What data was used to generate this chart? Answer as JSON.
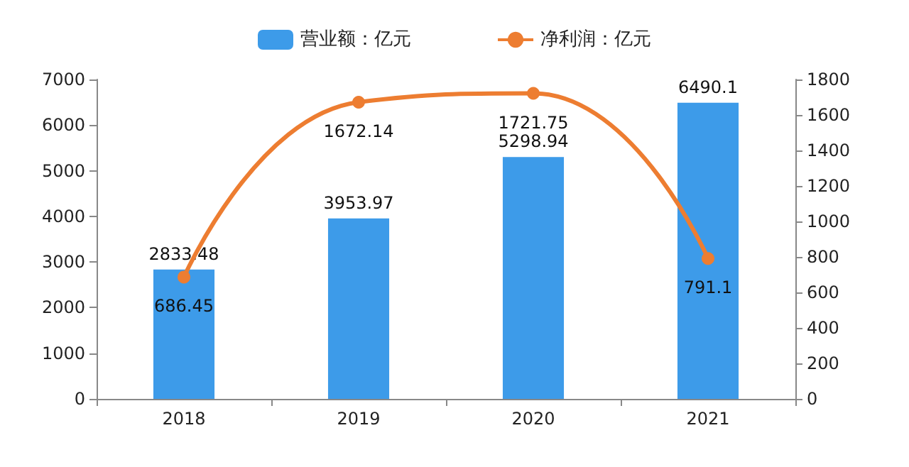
{
  "chart_data": {
    "type": "bar",
    "categories": [
      "2018",
      "2019",
      "2020",
      "2021"
    ],
    "series": [
      {
        "name": "营业额：亿元",
        "color": "#3d9be9",
        "values": [
          2833.48,
          3953.97,
          5298.94,
          6490.1
        ]
      },
      {
        "name": "净利润：亿元",
        "type": "line",
        "axis": "y2",
        "color": "#ed7d31",
        "values": [
          686.45,
          1672.14,
          1721.75,
          791.1
        ]
      }
    ],
    "ylim": [
      0,
      7000
    ],
    "yticks": [
      0,
      1000,
      2000,
      3000,
      4000,
      5000,
      6000,
      7000
    ],
    "y2lim": [
      0,
      1800
    ],
    "y2ticks": [
      0,
      200,
      400,
      600,
      800,
      1000,
      1200,
      1400,
      1600,
      1800
    ],
    "data_labels": true,
    "grid": false,
    "legend": "top",
    "marker": "circle"
  }
}
